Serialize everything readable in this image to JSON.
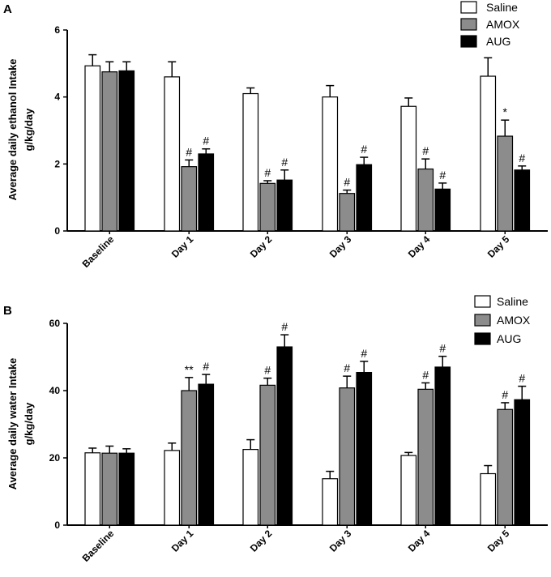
{
  "colors": {
    "Saline": "#ffffff",
    "AMOX": "#8c8c8c",
    "AUG": "#000000"
  },
  "chart_data": [
    {
      "type": "bar",
      "panel": "A",
      "ylabel_line1": "Average daily ethanol Intake",
      "ylabel_line2": "g/kg/day",
      "ylim": [
        0,
        6
      ],
      "yticks": [
        "0",
        "2",
        "4",
        "6"
      ],
      "categories": [
        "Baseline",
        "Day 1",
        "Day 2",
        "Day 3",
        "Day 4",
        "Day 5"
      ],
      "legend": [
        "Saline",
        "AMOX",
        "AUG"
      ],
      "series": [
        {
          "name": "Saline",
          "values": [
            4.93,
            4.6,
            4.1,
            4.0,
            3.72,
            4.62
          ],
          "errors": [
            0.33,
            0.45,
            0.17,
            0.34,
            0.25,
            0.55
          ],
          "marks": [
            "",
            "",
            "",
            "",
            "",
            ""
          ]
        },
        {
          "name": "AMOX",
          "values": [
            4.75,
            1.92,
            1.42,
            1.12,
            1.85,
            2.83
          ],
          "errors": [
            0.3,
            0.2,
            0.08,
            0.1,
            0.3,
            0.48
          ],
          "marks": [
            "",
            "#",
            "#",
            "#",
            "#",
            "*"
          ]
        },
        {
          "name": "AUG",
          "values": [
            4.78,
            2.3,
            1.52,
            1.98,
            1.25,
            1.82
          ],
          "errors": [
            0.27,
            0.15,
            0.3,
            0.22,
            0.18,
            0.12
          ],
          "marks": [
            "",
            "#",
            "#",
            "#",
            "#",
            "#"
          ]
        }
      ]
    },
    {
      "type": "bar",
      "panel": "B",
      "ylabel_line1": "Average daily water Intake",
      "ylabel_line2": "g/kg/day",
      "ylim": [
        0,
        60
      ],
      "yticks": [
        "0",
        "20",
        "40",
        "60"
      ],
      "categories": [
        "Baseline",
        "Day 1",
        "Day 2",
        "Day 3",
        "Day 4",
        "Day 5"
      ],
      "legend": [
        "Saline",
        "AMOX",
        "AUG"
      ],
      "series": [
        {
          "name": "Saline",
          "values": [
            21.5,
            22.2,
            22.5,
            13.8,
            20.7,
            15.3
          ],
          "errors": [
            1.4,
            2.2,
            2.9,
            2.2,
            0.9,
            2.4
          ],
          "marks": [
            "",
            "",
            "",
            "",
            "",
            ""
          ]
        },
        {
          "name": "AMOX",
          "values": [
            21.4,
            40.0,
            41.6,
            40.8,
            40.4,
            34.4
          ],
          "errors": [
            2.1,
            3.9,
            2.1,
            3.5,
            1.9,
            2.0
          ],
          "marks": [
            "",
            "**",
            "#",
            "#",
            "#",
            "#"
          ]
        },
        {
          "name": "AUG",
          "values": [
            21.4,
            41.9,
            53.0,
            45.4,
            47.0,
            37.3
          ],
          "errors": [
            1.3,
            2.9,
            3.6,
            3.3,
            3.2,
            4.0
          ],
          "marks": [
            "",
            "#",
            "#",
            "#",
            "#",
            "#"
          ]
        }
      ]
    }
  ]
}
